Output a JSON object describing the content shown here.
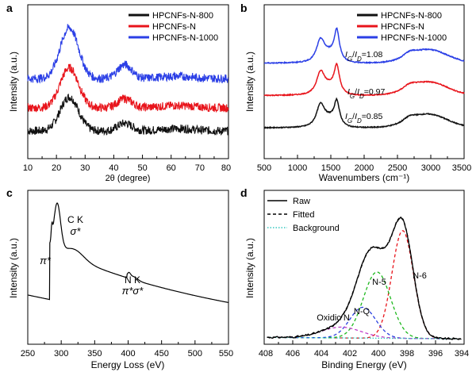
{
  "colors": {
    "black": "#111111",
    "red": "#e8141b",
    "blue": "#2b3fe6",
    "green": "#1db81d",
    "cyan": "#36c8c0",
    "magenta": "#c040c8",
    "bluedash": "#2a40e0"
  },
  "chart_data": [
    {
      "panel": "a",
      "type": "line",
      "xlabel": "2θ (degree)",
      "ylabel": "Intensity (a.u.)",
      "xlim": [
        10,
        80
      ],
      "xticks": [
        "10",
        "20",
        "30",
        "40",
        "50",
        "60",
        "70",
        "80"
      ],
      "legend_position": "top-right",
      "series": [
        {
          "name": "HPCNFs-N-800",
          "color": "black",
          "offset": 0.18,
          "peak1": 0.22,
          "peak2": 0.05
        },
        {
          "name": "HPCNFs-N",
          "color": "red",
          "offset": 0.33,
          "peak1": 0.26,
          "peak2": 0.06
        },
        {
          "name": "HPCNFs-N-1000",
          "color": "blue",
          "offset": 0.52,
          "peak1": 0.33,
          "peak2": 0.09
        }
      ]
    },
    {
      "panel": "b",
      "type": "line",
      "xlabel": "Wavenumbers (cm⁻¹)",
      "ylabel": "Intensity (a.u.)",
      "xlim": [
        500,
        3500
      ],
      "xticks": [
        "500",
        "1000",
        "1500",
        "2000",
        "2500",
        "3000",
        "3500"
      ],
      "legend_position": "top-right",
      "series": [
        {
          "name": "HPCNFs-N-800",
          "color": "black",
          "offset": 0.2,
          "ratio_label": "I_G/I_D=0.85"
        },
        {
          "name": "HPCNFs-N",
          "color": "red",
          "offset": 0.41,
          "ratio_label": "I_G/I_D=0.97"
        },
        {
          "name": "HPCNFs-N-1000",
          "color": "blue",
          "offset": 0.62,
          "ratio_label": "I_G/I_D=1.08"
        }
      ],
      "annotations": [
        "IG/ID=1.08",
        "IG/ID=0.97",
        "IG/ID=0.85"
      ]
    },
    {
      "panel": "c",
      "type": "line",
      "xlabel": "Energy Loss (eV)",
      "ylabel": "Intensity (a.u.)",
      "xlim": [
        250,
        550
      ],
      "xticks": [
        "250",
        "300",
        "350",
        "400",
        "450",
        "500",
        "550"
      ],
      "annotations": {
        "ck_edge": "C K",
        "ck_sigma": "σ*",
        "ck_pi": "π*",
        "nk_edge": "N K",
        "nk_pi_sigma": "π*σ*"
      }
    },
    {
      "panel": "d",
      "type": "line",
      "xlabel": "Binding Energy (eV)",
      "ylabel": "Intensity (a.u.)",
      "xlim": [
        408,
        394
      ],
      "xticks": [
        "408",
        "406",
        "404",
        "402",
        "400",
        "398",
        "396",
        "394"
      ],
      "legend_position": "top-left",
      "legend": [
        {
          "name": "Raw",
          "style": "solid"
        },
        {
          "name": "Fitted",
          "style": "dashed"
        },
        {
          "name": "Background",
          "style": "dotted"
        }
      ],
      "components": [
        {
          "name": "N-6",
          "center": 398.3,
          "height": 0.7,
          "color": "red"
        },
        {
          "name": "N-5",
          "center": 400.1,
          "height": 0.43,
          "color": "green"
        },
        {
          "name": "N-Q",
          "center": 401.1,
          "height": 0.2,
          "color": "bluedash"
        },
        {
          "name": "Oxidic N",
          "center": 402.6,
          "height": 0.07,
          "color": "magenta"
        }
      ]
    }
  ],
  "panels": {
    "a": {
      "letter": "a"
    },
    "b": {
      "letter": "b"
    },
    "c": {
      "letter": "c"
    },
    "d": {
      "letter": "d"
    }
  }
}
